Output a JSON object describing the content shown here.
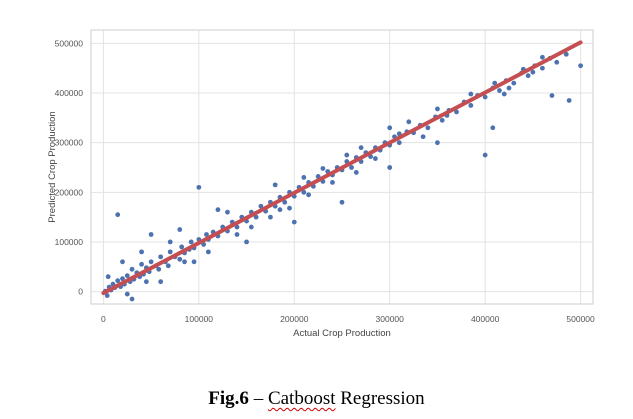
{
  "chart_data": {
    "type": "scatter",
    "xlabel": "Actual Crop Production",
    "ylabel": "Predicted Crop Production",
    "xlim": [
      -13000,
      513000
    ],
    "ylim": [
      -25000,
      527000
    ],
    "x_ticks": [
      0,
      100000,
      200000,
      300000,
      400000,
      500000
    ],
    "y_ticks": [
      0,
      100000,
      200000,
      300000,
      400000,
      500000
    ],
    "x_tick_labels": [
      "0",
      "100000",
      "200000",
      "300000",
      "400000",
      "500000"
    ],
    "y_tick_labels": [
      "0",
      "100000",
      "200000",
      "300000",
      "400000",
      "500000"
    ],
    "grid": true,
    "series": [
      {
        "values": [
          [
            2000,
            1000
          ],
          [
            4000,
            -8000
          ],
          [
            6000,
            9000
          ],
          [
            8000,
            3000
          ],
          [
            10000,
            15000
          ],
          [
            12000,
            8000
          ],
          [
            15000,
            22000
          ],
          [
            5000,
            30000
          ],
          [
            18000,
            10000
          ],
          [
            20000,
            26000
          ],
          [
            22000,
            15000
          ],
          [
            25000,
            32000
          ],
          [
            28000,
            20000
          ],
          [
            30000,
            45000
          ],
          [
            32000,
            25000
          ],
          [
            35000,
            38000
          ],
          [
            38000,
            30000
          ],
          [
            40000,
            55000
          ],
          [
            42000,
            35000
          ],
          [
            45000,
            48000
          ],
          [
            48000,
            40000
          ],
          [
            50000,
            60000
          ],
          [
            55000,
            52000
          ],
          [
            58000,
            45000
          ],
          [
            60000,
            70000
          ],
          [
            65000,
            60000
          ],
          [
            68000,
            52000
          ],
          [
            70000,
            80000
          ],
          [
            75000,
            70000
          ],
          [
            80000,
            65000
          ],
          [
            82000,
            90000
          ],
          [
            85000,
            78000
          ],
          [
            90000,
            85000
          ],
          [
            92000,
            100000
          ],
          [
            95000,
            88000
          ],
          [
            100000,
            105000
          ],
          [
            105000,
            95000
          ],
          [
            108000,
            115000
          ],
          [
            110000,
            105000
          ],
          [
            115000,
            120000
          ],
          [
            120000,
            112000
          ],
          [
            125000,
            130000
          ],
          [
            130000,
            122000
          ],
          [
            135000,
            140000
          ],
          [
            140000,
            130000
          ],
          [
            145000,
            150000
          ],
          [
            150000,
            142000
          ],
          [
            155000,
            160000
          ],
          [
            160000,
            150000
          ],
          [
            165000,
            172000
          ],
          [
            170000,
            162000
          ],
          [
            175000,
            180000
          ],
          [
            180000,
            172000
          ],
          [
            185000,
            190000
          ],
          [
            190000,
            180000
          ],
          [
            195000,
            200000
          ],
          [
            200000,
            192000
          ],
          [
            205000,
            210000
          ],
          [
            210000,
            200000
          ],
          [
            215000,
            220000
          ],
          [
            220000,
            212000
          ],
          [
            225000,
            232000
          ],
          [
            230000,
            222000
          ],
          [
            235000,
            242000
          ],
          [
            240000,
            235000
          ],
          [
            245000,
            250000
          ],
          [
            250000,
            245000
          ],
          [
            255000,
            262000
          ],
          [
            260000,
            250000
          ],
          [
            265000,
            270000
          ],
          [
            270000,
            262000
          ],
          [
            275000,
            280000
          ],
          [
            280000,
            272000
          ],
          [
            285000,
            290000
          ],
          [
            290000,
            285000
          ],
          [
            295000,
            300000
          ],
          [
            300000,
            295000
          ],
          [
            305000,
            312000
          ],
          [
            310000,
            300000
          ],
          [
            318000,
            322000
          ],
          [
            325000,
            320000
          ],
          [
            332000,
            335000
          ],
          [
            340000,
            330000
          ],
          [
            348000,
            352000
          ],
          [
            355000,
            345000
          ],
          [
            362000,
            365000
          ],
          [
            370000,
            362000
          ],
          [
            378000,
            382000
          ],
          [
            385000,
            375000
          ],
          [
            392000,
            395000
          ],
          [
            400000,
            392000
          ],
          [
            408000,
            410000
          ],
          [
            415000,
            405000
          ],
          [
            422000,
            425000
          ],
          [
            430000,
            420000
          ],
          [
            438000,
            440000
          ],
          [
            445000,
            435000
          ],
          [
            452000,
            455000
          ],
          [
            460000,
            450000
          ],
          [
            468000,
            470000
          ],
          [
            475000,
            462000
          ],
          [
            485000,
            478000
          ],
          [
            500000,
            455000
          ],
          [
            488000,
            385000
          ],
          [
            470000,
            395000
          ],
          [
            400000,
            275000
          ],
          [
            408000,
            330000
          ],
          [
            15000,
            155000
          ],
          [
            100000,
            210000
          ],
          [
            50000,
            115000
          ],
          [
            30000,
            -15000
          ],
          [
            60000,
            20000
          ],
          [
            150000,
            100000
          ],
          [
            200000,
            140000
          ],
          [
            250000,
            180000
          ],
          [
            300000,
            250000
          ],
          [
            350000,
            300000
          ],
          [
            300000,
            330000
          ],
          [
            80000,
            125000
          ],
          [
            120000,
            165000
          ],
          [
            350000,
            368000
          ],
          [
            440000,
            448000
          ],
          [
            420000,
            398000
          ],
          [
            460000,
            472000
          ],
          [
            320000,
            342000
          ],
          [
            270000,
            290000
          ],
          [
            180000,
            215000
          ],
          [
            130000,
            160000
          ],
          [
            95000,
            60000
          ],
          [
            110000,
            80000
          ],
          [
            140000,
            115000
          ],
          [
            175000,
            150000
          ],
          [
            195000,
            168000
          ],
          [
            210000,
            230000
          ],
          [
            230000,
            248000
          ],
          [
            255000,
            275000
          ],
          [
            265000,
            240000
          ],
          [
            285000,
            268000
          ],
          [
            310000,
            318000
          ],
          [
            335000,
            312000
          ],
          [
            360000,
            355000
          ],
          [
            385000,
            398000
          ],
          [
            410000,
            420000
          ],
          [
            425000,
            410000
          ],
          [
            450000,
            442000
          ],
          [
            40000,
            80000
          ],
          [
            20000,
            60000
          ],
          [
            70000,
            100000
          ],
          [
            25000,
            -5000
          ],
          [
            45000,
            20000
          ],
          [
            85000,
            60000
          ],
          [
            155000,
            130000
          ],
          [
            185000,
            165000
          ],
          [
            215000,
            195000
          ],
          [
            240000,
            220000
          ]
        ]
      },
      {
        "type": "line",
        "x": [
          0,
          500000
        ],
        "y": [
          -3000,
          502000
        ]
      }
    ]
  },
  "caption": {
    "prefix": "Fig.6",
    "separator": " – ",
    "word1": "Catboost",
    "word2": " Regression"
  },
  "colors": {
    "points": "#4c72b0",
    "fit_line": "#c44e52",
    "grid": "#e3e3e3",
    "frame": "#cccccc"
  }
}
